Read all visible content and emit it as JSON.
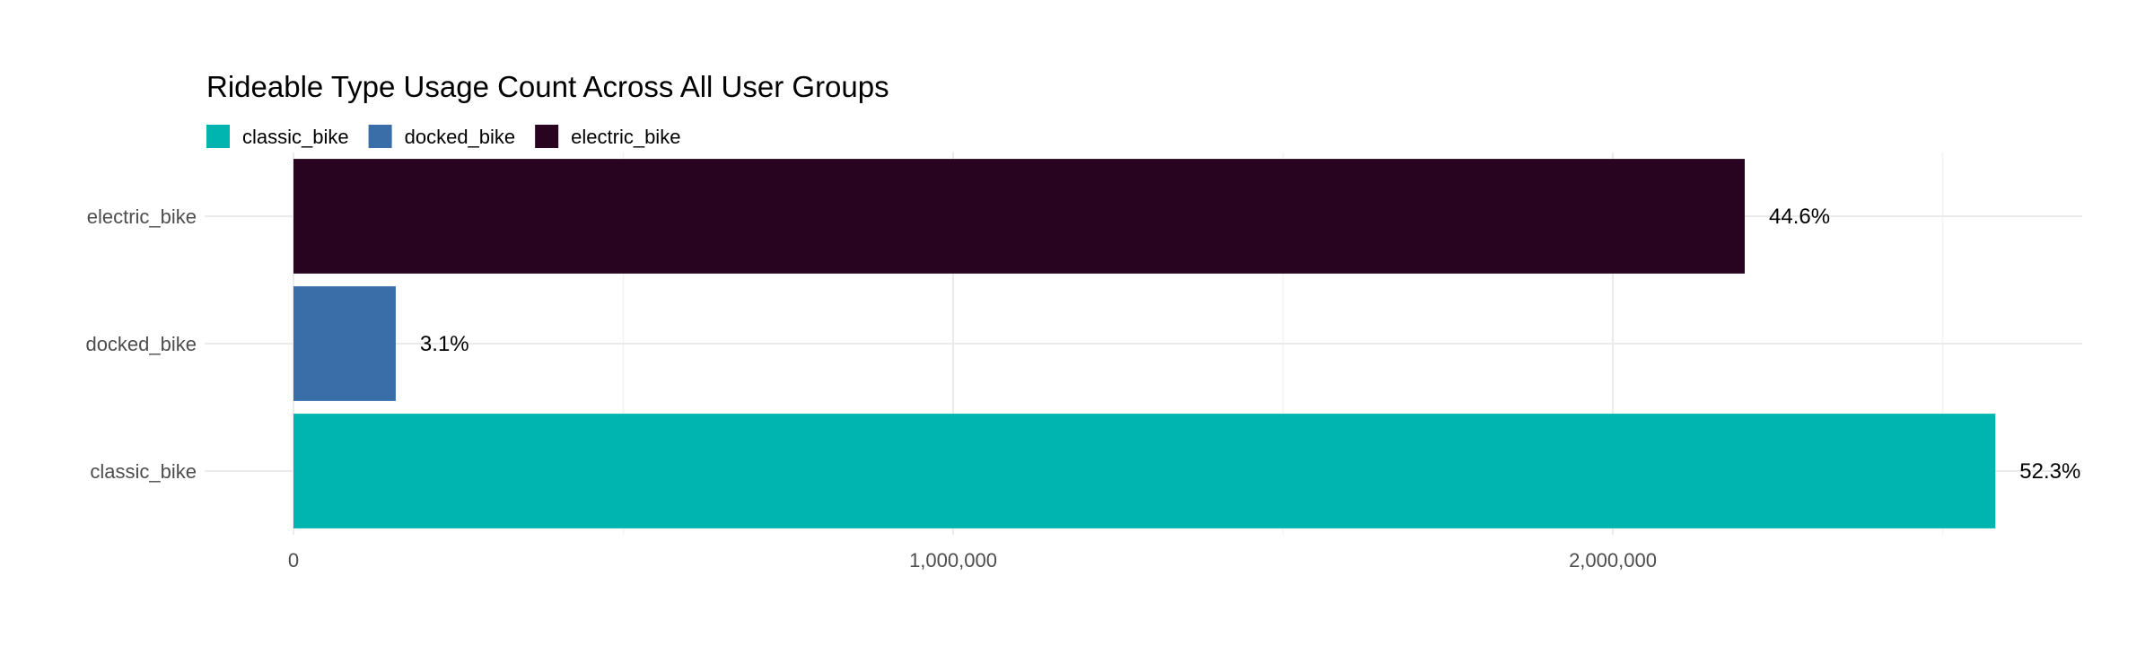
{
  "chart_data": {
    "type": "bar",
    "orientation": "horizontal",
    "title": "Rideable Type Usage Count Across All User Groups",
    "xlabel": "",
    "ylabel": "",
    "categories": [
      "electric_bike",
      "docked_bike",
      "classic_bike"
    ],
    "values": [
      2200000,
      155000,
      2580000
    ],
    "data_labels": [
      "44.6%",
      "3.1%",
      "52.3%"
    ],
    "colors": {
      "classic_bike": "#00B4B0",
      "docked_bike": "#3A6EA8",
      "electric_bike": "#290420"
    },
    "legend": {
      "position": "top-left",
      "items": [
        "classic_bike",
        "docked_bike",
        "electric_bike"
      ]
    },
    "xlim": [
      0,
      2620000
    ],
    "x_ticks": [
      0,
      1000000,
      2000000
    ],
    "x_tick_labels": [
      "0",
      "1,000,000",
      "2,000,000"
    ],
    "grid": true
  }
}
